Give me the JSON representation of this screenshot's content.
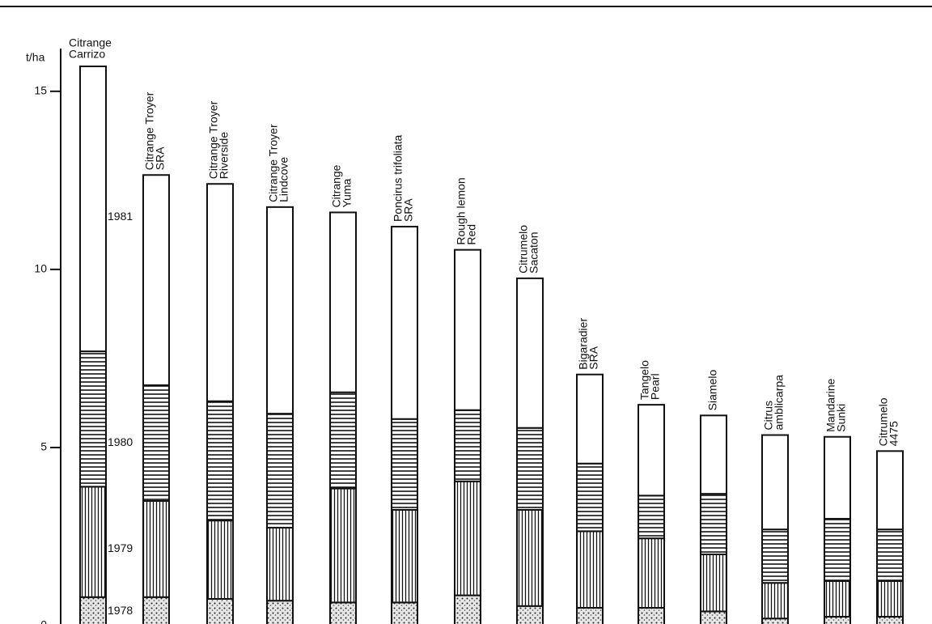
{
  "chart_data": {
    "type": "stacked_bar",
    "y_label": "t/ha",
    "ylim": [
      0,
      15.7
    ],
    "yticks": [
      0,
      5,
      10,
      15
    ],
    "categories": [
      [
        "Citrange",
        "Carrizo"
      ],
      [
        "Citrange Troyer",
        "SRA"
      ],
      [
        "Citrange Troyer",
        "Riverside"
      ],
      [
        "Citrange Troyer",
        "Lindcove"
      ],
      [
        "Citrange",
        "Yuma"
      ],
      [
        "Poncirus trifoliata",
        "SRA"
      ],
      [
        "Rough lemon",
        "Red"
      ],
      [
        "Citrumelo",
        "Sacaton"
      ],
      [
        "Bigaradier",
        "SRA"
      ],
      [
        "Tangelo",
        "Pearl"
      ],
      [
        "Siamelo"
      ],
      [
        "Citrus",
        "amblicarpa"
      ],
      [
        "Mandarine",
        "Sunki"
      ],
      [
        "Citrumelo",
        "4475"
      ]
    ],
    "series": [
      {
        "name": "1978",
        "pattern": "dots",
        "values": [
          0.8,
          0.8,
          0.75,
          0.7,
          0.65,
          0.65,
          0.85,
          0.55,
          0.5,
          0.5,
          0.4,
          0.2,
          0.25,
          0.25
        ]
      },
      {
        "name": "1979",
        "pattern": "vertical",
        "values": [
          3.1,
          2.7,
          2.2,
          2.05,
          3.2,
          2.6,
          3.2,
          2.7,
          2.15,
          1.95,
          1.6,
          1.0,
          1.0,
          1.0
        ]
      },
      {
        "name": "1980",
        "pattern": "horizontal",
        "values": [
          3.8,
          3.25,
          3.35,
          3.2,
          2.7,
          2.55,
          2.0,
          2.3,
          1.9,
          1.2,
          1.7,
          1.5,
          1.75,
          1.45
        ]
      },
      {
        "name": "1981",
        "pattern": "none",
        "values": [
          8.0,
          5.9,
          6.1,
          5.8,
          5.05,
          5.4,
          4.5,
          4.2,
          2.5,
          2.55,
          2.2,
          2.65,
          2.3,
          2.2
        ]
      }
    ]
  }
}
